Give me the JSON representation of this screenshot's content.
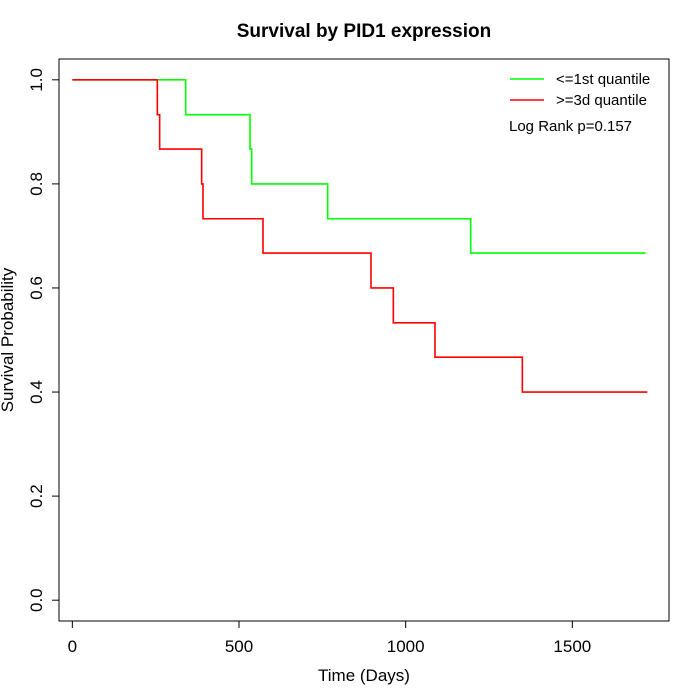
{
  "chart_data": {
    "type": "line",
    "title": "Survival by PID1 expression",
    "xlabel": "Time (Days)",
    "ylabel": "Survival Probability",
    "xlim": [
      -40,
      1790
    ],
    "ylim": [
      -0.04,
      1.04
    ],
    "xticks": [
      0,
      500,
      1000,
      1500
    ],
    "yticks": [
      0.0,
      0.2,
      0.4,
      0.6,
      0.8,
      1.0
    ],
    "ytick_labels": [
      "0.0",
      "0.2",
      "0.4",
      "0.6",
      "0.8",
      "1.0"
    ],
    "legend_position": "top-right",
    "annotation": "Log Rank p=0.157",
    "grid": false,
    "series": [
      {
        "name": "<=1st quantile",
        "color": "#00ff00",
        "x": [
          0,
          340,
          533,
          538,
          766,
          1195,
          1720
        ],
        "y": [
          1.0,
          0.933,
          0.867,
          0.8,
          0.733,
          0.667,
          0.667
        ]
      },
      {
        "name": ">=3d quantile",
        "color": "#ff0000",
        "x": [
          0,
          255,
          262,
          388,
          392,
          572,
          896,
          963,
          1088,
          1350,
          1725
        ],
        "y": [
          1.0,
          0.933,
          0.867,
          0.8,
          0.733,
          0.667,
          0.6,
          0.533,
          0.467,
          0.4,
          0.4
        ]
      }
    ]
  }
}
